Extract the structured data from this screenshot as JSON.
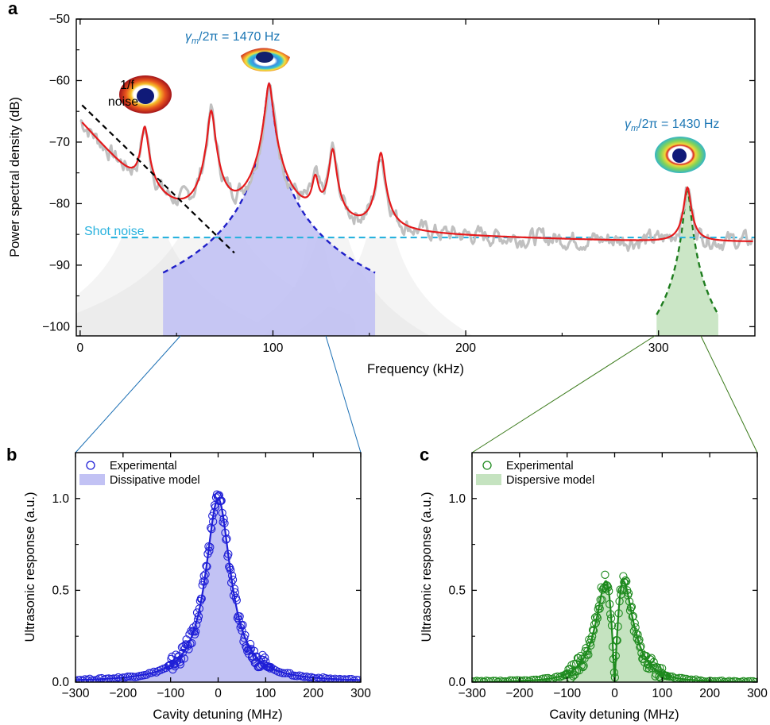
{
  "panel_labels": [
    "a",
    "b",
    "c"
  ],
  "chart_data": [
    {
      "panel": "a",
      "type": "line",
      "xlabel": "Frequency (kHz)",
      "ylabel": "Power spectral density (dB)",
      "xlim": [
        -2,
        350
      ],
      "ylim": [
        -101.5,
        -50
      ],
      "xticks": [
        0,
        100,
        200,
        300
      ],
      "yticks": [
        -100,
        -90,
        -80,
        -70,
        -60,
        -50
      ],
      "xticklabels": [
        "0",
        "100",
        "200",
        "300"
      ],
      "yticklabels": [
        "−100",
        "−90",
        "−80",
        "−70",
        "−60",
        "−50"
      ],
      "grid": false,
      "background": -85,
      "lorentz_width": 1.6,
      "peaks": [
        {
          "x": 33.5,
          "y": -68
        },
        {
          "x": 68,
          "y": -65
        },
        {
          "x": 98,
          "y": -60.5
        },
        {
          "x": 122,
          "y": -77
        },
        {
          "x": 131,
          "y": -71.5
        },
        {
          "x": 156,
          "y": -72
        },
        {
          "x": 315,
          "y": -78
        }
      ],
      "series": [
        {
          "name": "",
          "kind": "measured",
          "color": "#c0c0c0"
        },
        {
          "name": "",
          "kind": "fit",
          "color": "#e41a1c"
        },
        {
          "name": "",
          "kind": "mode-98kHz",
          "color": "#1f1fc8",
          "fill": "#c2c2f4"
        },
        {
          "name": "",
          "kind": "mode-315kHz",
          "color": "#1e7d1e",
          "fill": "#c5e3c0"
        }
      ],
      "one_over_f": {
        "x": [
          1,
          80
        ],
        "y": [
          -64,
          -88
        ],
        "color": "#000000"
      },
      "shot_noise_level": -85.5,
      "annotations": {
        "one_over_f_1": "1/f",
        "one_over_f_2": "noise",
        "shot_noise": "Shot noise",
        "gamma_left": "= 1470 Hz",
        "gamma_right": "= 1430 Hz",
        "gamma_symbol": "γ",
        "gamma_sub": "m",
        "gamma_rest": "/2π "
      },
      "colors": {
        "annotation": "#1b76b4",
        "shot_noise": "#29b2de"
      }
    },
    {
      "panel": "b",
      "type": "scatter",
      "xlabel": "Cavity detuning (MHz)",
      "ylabel": "Ultrasonic response (a.u.)",
      "xlim": [
        -300,
        300
      ],
      "ylim": [
        0,
        1.25
      ],
      "xticks": [
        -300,
        -200,
        -100,
        0,
        100,
        200,
        300
      ],
      "yticks": [
        0,
        0.5,
        1.0
      ],
      "xticklabels": [
        "−300",
        "−200",
        "−100",
        "0",
        "100",
        "200",
        "300"
      ],
      "yticklabels": [
        "0.0",
        "0.5",
        "1.0"
      ],
      "legend": [
        "Experimental",
        "Dissipative model"
      ],
      "legend_position": "top-left",
      "model": {
        "type": "lorentzian-dissipative",
        "center": 0,
        "hwhm": 32,
        "amplitude": 1.0
      },
      "color": "#1f1fd6",
      "fill": "#c2c2f4"
    },
    {
      "panel": "c",
      "type": "scatter",
      "xlabel": "Cavity detuning (MHz)",
      "ylabel": "Ultrasonic response (a.u.)",
      "xlim": [
        -300,
        300
      ],
      "ylim": [
        0,
        1.25
      ],
      "xticks": [
        -300,
        -200,
        -100,
        0,
        100,
        200,
        300
      ],
      "yticks": [
        0,
        0.5,
        1.0
      ],
      "xticklabels": [
        "−300",
        "−200",
        "−100",
        "0",
        "100",
        "200",
        "300"
      ],
      "yticklabels": [
        "0.0",
        "0.5",
        "1.0"
      ],
      "legend": [
        "Experimental",
        "Dispersive model"
      ],
      "legend_position": "top-left",
      "model": {
        "type": "lorentzian-derivative",
        "center": 0,
        "hwhm": 32,
        "amplitude": 1.1
      },
      "color": "#1e8a1e",
      "fill": "#c5e3c0"
    }
  ]
}
